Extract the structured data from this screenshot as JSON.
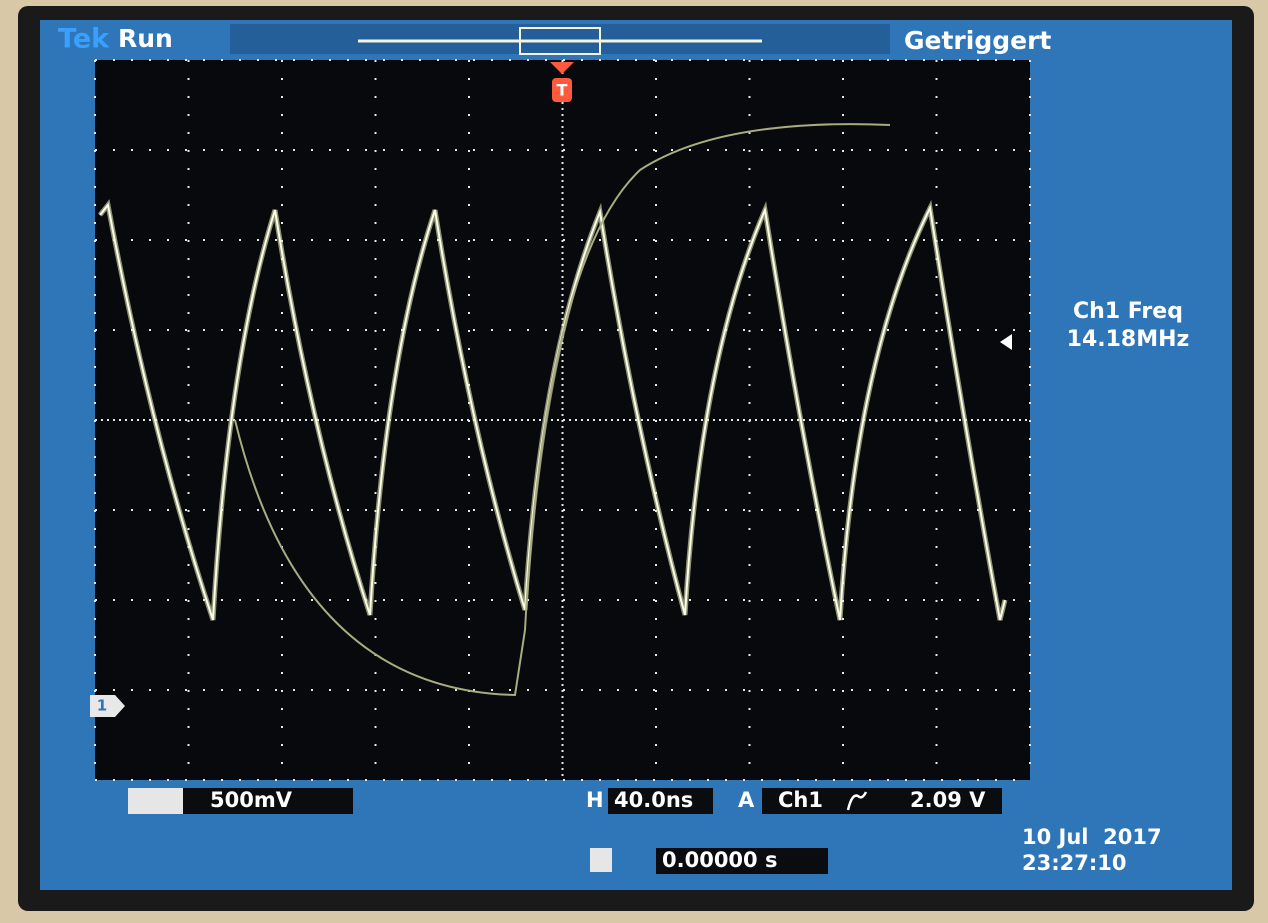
{
  "header": {
    "brand": "Tek",
    "status": "Run",
    "trigger_state": "Getriggert"
  },
  "markers": {
    "trigger": "T",
    "channel": "1"
  },
  "measurement": {
    "label": "Ch1 Freq",
    "value": "14.18MHz"
  },
  "status_bar": {
    "ch1_scale": "500mV",
    "horizontal_label": "H",
    "horizontal_scale": "40.0ns",
    "trigger_label": "A",
    "trigger_source": "Ch1",
    "trigger_level": "2.09 V",
    "position": "0.00000 s"
  },
  "datetime": {
    "date": "10 Jul  2017",
    "time": "23:27:10"
  }
}
